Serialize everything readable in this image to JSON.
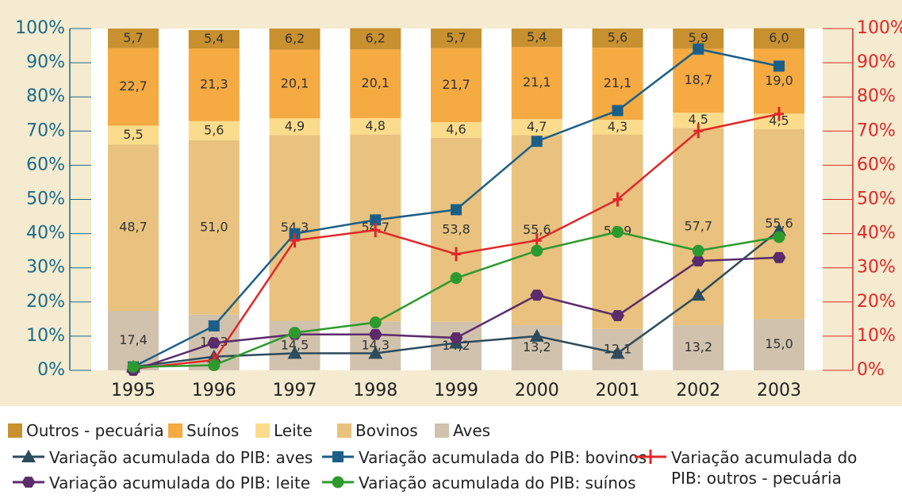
{
  "chart_data": {
    "type": "bar",
    "stacked": true,
    "categories": [
      "1995",
      "1996",
      "1997",
      "1998",
      "1999",
      "2000",
      "2001",
      "2002",
      "2003"
    ],
    "ylim": [
      0,
      100
    ],
    "yticks": [
      {
        "value": 0,
        "label": "0%"
      },
      {
        "value": 10,
        "label": "10%"
      },
      {
        "value": 20,
        "label": "20%"
      },
      {
        "value": 30,
        "label": "30%"
      },
      {
        "value": 40,
        "label": "40%"
      },
      {
        "value": 50,
        "label": "50%"
      },
      {
        "value": 60,
        "label": "60%"
      },
      {
        "value": 70,
        "label": "70%"
      },
      {
        "value": 80,
        "label": "80%"
      },
      {
        "value": 90,
        "label": "90%"
      },
      {
        "value": 100,
        "label": "100%"
      }
    ],
    "y2lim": [
      0,
      100
    ],
    "y2ticks": [
      {
        "value": 0,
        "label": "0%"
      },
      {
        "value": 10,
        "label": "10%"
      },
      {
        "value": 20,
        "label": "20%"
      },
      {
        "value": 30,
        "label": "30%"
      },
      {
        "value": 40,
        "label": "40%"
      },
      {
        "value": 50,
        "label": "50%"
      },
      {
        "value": 60,
        "label": "60%"
      },
      {
        "value": 70,
        "label": "70%"
      },
      {
        "value": 80,
        "label": "80%"
      },
      {
        "value": 90,
        "label": "90%"
      },
      {
        "value": 100,
        "label": "100%"
      }
    ],
    "series": [
      {
        "name": "Outros - pecuária",
        "type": "bar",
        "color": "#c8902e",
        "values": [
          5.7,
          5.4,
          6.2,
          6.2,
          5.7,
          5.4,
          5.6,
          5.9,
          6.0
        ],
        "value_labels": [
          "5,7",
          "5,4",
          "6,2",
          "6,2",
          "5,7",
          "5,4",
          "5,6",
          "5,9",
          "6,0"
        ]
      },
      {
        "name": "Suínos",
        "type": "bar",
        "color": "#f5aa42",
        "values": [
          22.7,
          21.3,
          20.1,
          20.1,
          21.7,
          21.1,
          21.1,
          18.7,
          19.0
        ],
        "value_labels": [
          "22,7",
          "21,3",
          "20,1",
          "20,1",
          "21,7",
          "21,1",
          "21,1",
          "18,7",
          "19,0"
        ]
      },
      {
        "name": "Leite",
        "type": "bar",
        "color": "#fbdc8c",
        "values": [
          5.5,
          5.6,
          4.9,
          4.8,
          4.6,
          4.7,
          4.3,
          4.5,
          4.5
        ],
        "value_labels": [
          "5,5",
          "5,6",
          "4,9",
          "4,8",
          "4,6",
          "4,7",
          "4,3",
          "4,5",
          "4,5"
        ]
      },
      {
        "name": "Bovinos",
        "type": "bar",
        "color": "#e8c27e",
        "values": [
          48.7,
          51.0,
          54.3,
          54.7,
          53.8,
          55.6,
          56.9,
          57.7,
          55.6
        ],
        "value_labels": [
          "48,7",
          "51,0",
          "54,3",
          "54,7",
          "53,8",
          "55,6",
          "56,9",
          "57,7",
          "55,6"
        ]
      },
      {
        "name": "Aves",
        "type": "bar",
        "color": "#d0c2ac",
        "values": [
          17.4,
          16.3,
          14.5,
          14.3,
          14.2,
          13.2,
          12.1,
          13.2,
          15.0
        ],
        "value_labels": [
          "17,4",
          "16,3",
          "14,5",
          "14,3",
          "14,2",
          "13,2",
          "12,1",
          "13,2",
          "15,0"
        ]
      },
      {
        "name": "Variação acumulada do PIB: aves",
        "type": "line",
        "marker": "triangle",
        "color": "#2d4b5c",
        "values": [
          1,
          4,
          5,
          5,
          8,
          10,
          5,
          22,
          41
        ]
      },
      {
        "name": "Variação acumulada do PIB: bovinos",
        "type": "line",
        "marker": "square",
        "color": "#1b5f88",
        "values": [
          1,
          13,
          40,
          44,
          47,
          67,
          76,
          94,
          89
        ]
      },
      {
        "name": "Variação acumulada do PIB: outros - pecuária",
        "type": "line",
        "marker": "plus",
        "axis": "y2",
        "color": "#e02828",
        "values": [
          0.5,
          3,
          38,
          41,
          34,
          38,
          50,
          70,
          75
        ]
      },
      {
        "name": "Variação acumulada do PIB: leite",
        "type": "line",
        "marker": "hexagon",
        "color": "#5b2b6b",
        "values": [
          0,
          8,
          10.5,
          10.5,
          9.5,
          22,
          16,
          32,
          33
        ]
      },
      {
        "name": "Variação acumulada do PIB: suínos",
        "type": "line",
        "marker": "circle",
        "color": "#2e9a2e",
        "values": [
          1,
          1.5,
          11,
          14,
          27,
          35,
          40.5,
          35,
          39
        ]
      }
    ]
  }
}
